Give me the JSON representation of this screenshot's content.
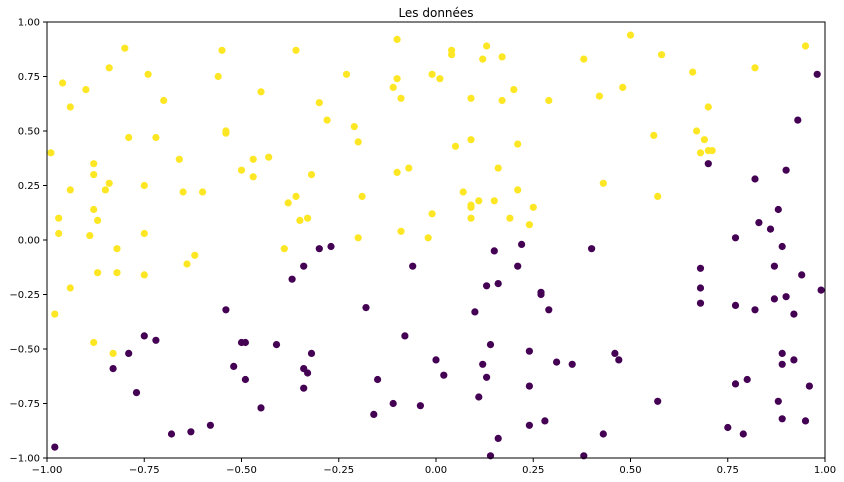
{
  "chart_data": {
    "type": "scatter",
    "title": "Les données",
    "xlabel": "",
    "ylabel": "",
    "xlim": [
      -1.0,
      1.0
    ],
    "ylim": [
      -1.0,
      1.0
    ],
    "grid": false,
    "legend": "none",
    "x_ticks": [
      -1.0,
      -0.75,
      -0.5,
      -0.25,
      0.0,
      0.25,
      0.5,
      0.75,
      1.0
    ],
    "x_tick_labels": [
      "−1.00",
      "−0.75",
      "−0.50",
      "−0.25",
      "0.00",
      "0.25",
      "0.50",
      "0.75",
      "1.00"
    ],
    "y_ticks": [
      -1.0,
      -0.75,
      -0.5,
      -0.25,
      0.0,
      0.25,
      0.5,
      0.75,
      1.0
    ],
    "y_tick_labels": [
      "−1.00",
      "−0.75",
      "−0.50",
      "−0.25",
      "0.00",
      "0.25",
      "0.50",
      "0.75",
      "1.00"
    ],
    "series": [
      {
        "color": "#fde725",
        "points": [
          [
            -0.99,
            0.4
          ],
          [
            -0.98,
            -0.34
          ],
          [
            -0.97,
            0.1
          ],
          [
            -0.97,
            0.03
          ],
          [
            -0.96,
            0.72
          ],
          [
            -0.94,
            0.61
          ],
          [
            -0.94,
            0.23
          ],
          [
            -0.94,
            -0.22
          ],
          [
            -0.9,
            0.69
          ],
          [
            -0.89,
            0.02
          ],
          [
            -0.88,
            0.35
          ],
          [
            -0.88,
            0.3
          ],
          [
            -0.88,
            0.14
          ],
          [
            -0.87,
            0.09
          ],
          [
            -0.87,
            -0.15
          ],
          [
            -0.88,
            -0.47
          ],
          [
            -0.85,
            0.23
          ],
          [
            -0.84,
            0.26
          ],
          [
            -0.83,
            -0.52
          ],
          [
            -0.84,
            0.79
          ],
          [
            -0.82,
            -0.04
          ],
          [
            -0.82,
            -0.15
          ],
          [
            -0.8,
            0.88
          ],
          [
            -0.79,
            0.47
          ],
          [
            -0.75,
            0.25
          ],
          [
            -0.75,
            0.03
          ],
          [
            -0.75,
            -0.16
          ],
          [
            -0.74,
            0.76
          ],
          [
            -0.72,
            0.47
          ],
          [
            -0.7,
            0.64
          ],
          [
            -0.66,
            0.37
          ],
          [
            -0.65,
            0.22
          ],
          [
            -0.64,
            -0.11
          ],
          [
            -0.62,
            -0.07
          ],
          [
            -0.6,
            0.22
          ],
          [
            -0.56,
            0.75
          ],
          [
            -0.55,
            0.87
          ],
          [
            -0.54,
            0.5
          ],
          [
            -0.54,
            0.49
          ],
          [
            -0.5,
            0.32
          ],
          [
            -0.47,
            0.37
          ],
          [
            -0.47,
            0.29
          ],
          [
            -0.45,
            0.68
          ],
          [
            -0.43,
            0.38
          ],
          [
            -0.39,
            -0.04
          ],
          [
            -0.38,
            0.17
          ],
          [
            -0.36,
            0.2
          ],
          [
            -0.36,
            0.87
          ],
          [
            -0.35,
            0.09
          ],
          [
            -0.33,
            0.1
          ],
          [
            -0.32,
            0.3
          ],
          [
            -0.3,
            0.63
          ],
          [
            -0.28,
            0.55
          ],
          [
            -0.23,
            0.76
          ],
          [
            -0.21,
            0.52
          ],
          [
            -0.2,
            0.45
          ],
          [
            -0.2,
            0.01
          ],
          [
            -0.19,
            0.2
          ],
          [
            -0.11,
            0.7
          ],
          [
            -0.1,
            0.92
          ],
          [
            -0.1,
            0.74
          ],
          [
            -0.1,
            0.31
          ],
          [
            -0.09,
            0.65
          ],
          [
            -0.09,
            0.04
          ],
          [
            -0.07,
            0.33
          ],
          [
            -0.02,
            0.01
          ],
          [
            -0.01,
            0.76
          ],
          [
            -0.01,
            0.12
          ],
          [
            0.01,
            0.74
          ],
          [
            0.04,
            0.85
          ],
          [
            0.04,
            0.87
          ],
          [
            0.05,
            0.43
          ],
          [
            0.07,
            0.22
          ],
          [
            0.09,
            0.1
          ],
          [
            0.09,
            0.46
          ],
          [
            0.09,
            0.65
          ],
          [
            0.09,
            0.16
          ],
          [
            0.09,
            0.15
          ],
          [
            0.11,
            0.18
          ],
          [
            0.12,
            0.83
          ],
          [
            0.13,
            0.89
          ],
          [
            0.15,
            0.18
          ],
          [
            0.16,
            0.33
          ],
          [
            0.17,
            0.64
          ],
          [
            0.17,
            0.84
          ],
          [
            0.19,
            0.1
          ],
          [
            0.2,
            0.69
          ],
          [
            0.21,
            0.23
          ],
          [
            0.21,
            0.44
          ],
          [
            0.24,
            0.07
          ],
          [
            0.25,
            0.15
          ],
          [
            0.29,
            0.64
          ],
          [
            0.38,
            0.83
          ],
          [
            0.42,
            0.66
          ],
          [
            0.43,
            0.26
          ],
          [
            0.48,
            0.7
          ],
          [
            0.5,
            0.94
          ],
          [
            0.56,
            0.48
          ],
          [
            0.57,
            0.2
          ],
          [
            0.58,
            0.85
          ],
          [
            0.66,
            0.77
          ],
          [
            0.67,
            0.5
          ],
          [
            0.68,
            0.4
          ],
          [
            0.69,
            0.46
          ],
          [
            0.7,
            0.41
          ],
          [
            0.7,
            0.61
          ],
          [
            0.71,
            0.41
          ],
          [
            0.82,
            0.79
          ],
          [
            0.95,
            0.89
          ]
        ]
      },
      {
        "color": "#440154",
        "points": [
          [
            -0.98,
            -0.95
          ],
          [
            -0.83,
            -0.59
          ],
          [
            -0.79,
            -0.52
          ],
          [
            -0.77,
            -0.7
          ],
          [
            -0.75,
            -0.44
          ],
          [
            -0.72,
            -0.46
          ],
          [
            -0.68,
            -0.89
          ],
          [
            -0.63,
            -0.88
          ],
          [
            -0.58,
            -0.85
          ],
          [
            -0.54,
            -0.32
          ],
          [
            -0.52,
            -0.58
          ],
          [
            -0.5,
            -0.47
          ],
          [
            -0.49,
            -0.47
          ],
          [
            -0.49,
            -0.64
          ],
          [
            -0.45,
            -0.77
          ],
          [
            -0.41,
            -0.48
          ],
          [
            -0.37,
            -0.18
          ],
          [
            -0.34,
            -0.12
          ],
          [
            -0.34,
            -0.59
          ],
          [
            -0.34,
            -0.68
          ],
          [
            -0.33,
            -0.61
          ],
          [
            -0.32,
            -0.52
          ],
          [
            -0.3,
            -0.04
          ],
          [
            -0.27,
            -0.03
          ],
          [
            -0.18,
            -0.31
          ],
          [
            -0.15,
            -0.64
          ],
          [
            -0.16,
            -0.8
          ],
          [
            -0.11,
            -0.75
          ],
          [
            -0.08,
            -0.44
          ],
          [
            -0.06,
            -0.12
          ],
          [
            -0.04,
            -0.76
          ],
          [
            0.0,
            -0.55
          ],
          [
            0.02,
            -0.62
          ],
          [
            0.1,
            -0.33
          ],
          [
            0.11,
            -0.72
          ],
          [
            0.12,
            -0.57
          ],
          [
            0.13,
            -0.63
          ],
          [
            0.13,
            -0.21
          ],
          [
            0.14,
            -0.99
          ],
          [
            0.14,
            -0.48
          ],
          [
            0.15,
            -0.05
          ],
          [
            0.16,
            -0.2
          ],
          [
            0.16,
            -0.91
          ],
          [
            0.21,
            -0.12
          ],
          [
            0.22,
            -0.02
          ],
          [
            0.24,
            -0.67
          ],
          [
            0.24,
            -0.85
          ],
          [
            0.24,
            -0.51
          ],
          [
            0.27,
            -0.24
          ],
          [
            0.27,
            -0.25
          ],
          [
            0.28,
            -0.83
          ],
          [
            0.29,
            -0.32
          ],
          [
            0.31,
            -0.56
          ],
          [
            0.35,
            -0.57
          ],
          [
            0.38,
            -0.99
          ],
          [
            0.4,
            -0.04
          ],
          [
            0.43,
            -0.89
          ],
          [
            0.46,
            -0.52
          ],
          [
            0.47,
            -0.55
          ],
          [
            0.57,
            -0.74
          ],
          [
            0.68,
            -0.13
          ],
          [
            0.68,
            -0.22
          ],
          [
            0.68,
            -0.29
          ],
          [
            0.7,
            0.35
          ],
          [
            0.75,
            -0.86
          ],
          [
            0.77,
            -0.66
          ],
          [
            0.77,
            -0.3
          ],
          [
            0.77,
            0.01
          ],
          [
            0.79,
            -0.89
          ],
          [
            0.8,
            -0.64
          ],
          [
            0.82,
            0.28
          ],
          [
            0.82,
            -0.32
          ],
          [
            0.83,
            0.08
          ],
          [
            0.86,
            0.05
          ],
          [
            0.87,
            -0.12
          ],
          [
            0.87,
            -0.27
          ],
          [
            0.88,
            0.14
          ],
          [
            0.88,
            -0.74
          ],
          [
            0.89,
            -0.03
          ],
          [
            0.89,
            -0.52
          ],
          [
            0.89,
            -0.57
          ],
          [
            0.89,
            -0.82
          ],
          [
            0.9,
            0.32
          ],
          [
            0.9,
            -0.26
          ],
          [
            0.92,
            -0.55
          ],
          [
            0.92,
            -0.34
          ],
          [
            0.93,
            0.55
          ],
          [
            0.94,
            -0.16
          ],
          [
            0.95,
            -0.83
          ],
          [
            0.96,
            -0.67
          ],
          [
            0.98,
            0.76
          ],
          [
            0.99,
            -0.23
          ]
        ]
      }
    ]
  }
}
